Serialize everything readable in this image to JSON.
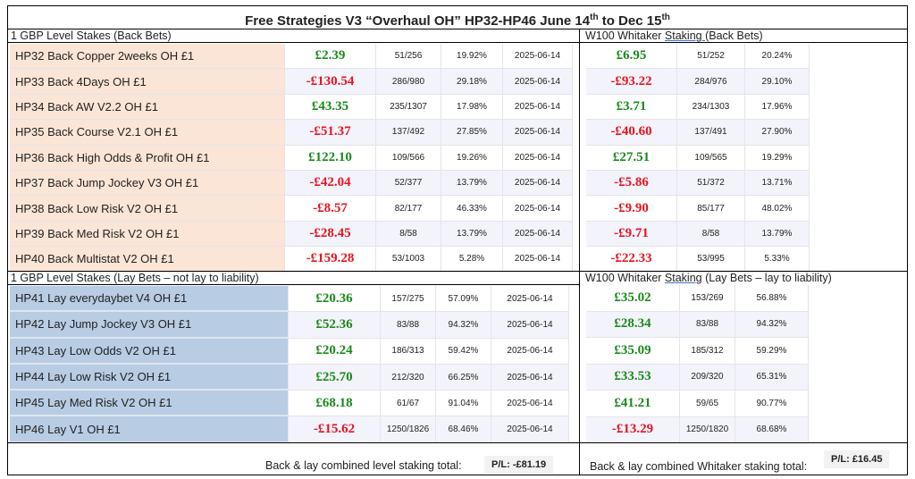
{
  "title": {
    "main": "Free Strategies V3 “Overhaul OH” HP32-HP46 June 14",
    "sup1": "th",
    "mid": " to Dec 15",
    "sup2": "th"
  },
  "back_left_header": "1 GBP Level Stakes (Back Bets)",
  "back_right_header": {
    "pre": "W100 Whitaker ",
    "under": "Staking ",
    "post": " (Back Bets)"
  },
  "lay_left_header": "1 GBP Level Stakes (Lay Bets – not lay to liability)",
  "lay_right_header": {
    "pre": "W100 Whitaker ",
    "under": "Staking",
    "post": " (Lay Bets – lay to liability)"
  },
  "back_rows": [
    {
      "name": "HP32 Back Copper 2weeks OH £1",
      "pl": "£2.39",
      "ratio": "51/256",
      "pct": "19.92%",
      "date": "2025-06-14",
      "w_pl": "£6.95",
      "w_ratio": "51/252",
      "w_pct": "20.24%",
      "pos": true,
      "wpos": true
    },
    {
      "name": "HP33 Back 4Days OH £1",
      "pl": "-£130.54",
      "ratio": "286/980",
      "pct": "29.18%",
      "date": "2025-06-14",
      "w_pl": "-£93.22",
      "w_ratio": "284/976",
      "w_pct": "29.10%",
      "pos": false,
      "wpos": false
    },
    {
      "name": "HP34 Back AW V2.2 OH £1",
      "pl": "£43.35",
      "ratio": "235/1307",
      "pct": "17.98%",
      "date": "2025-06-14",
      "w_pl": "£3.71",
      "w_ratio": "234/1303",
      "w_pct": "17.96%",
      "pos": true,
      "wpos": true
    },
    {
      "name": "HP35 Back Course V2.1 OH £1",
      "pl": "-£51.37",
      "ratio": "137/492",
      "pct": "27.85%",
      "date": "2025-06-14",
      "w_pl": "-£40.60",
      "w_ratio": "137/491",
      "w_pct": "27.90%",
      "pos": false,
      "wpos": false
    },
    {
      "name": "HP36 Back High Odds & Profit OH £1",
      "pl": "£122.10",
      "ratio": "109/566",
      "pct": "19.26%",
      "date": "2025-06-14",
      "w_pl": "£27.51",
      "w_ratio": "109/565",
      "w_pct": "19.29%",
      "pos": true,
      "wpos": true
    },
    {
      "name": "HP37 Back Jump Jockey V3 OH £1",
      "pl": "-£42.04",
      "ratio": "52/377",
      "pct": "13.79%",
      "date": "2025-06-14",
      "w_pl": "-£5.86",
      "w_ratio": "51/372",
      "w_pct": "13.71%",
      "pos": false,
      "wpos": false
    },
    {
      "name": "HP38 Back Low Risk V2 OH £1",
      "pl": "-£8.57",
      "ratio": "82/177",
      "pct": "46.33%",
      "date": "2025-06-14",
      "w_pl": "-£9.90",
      "w_ratio": "85/177",
      "w_pct": "48.02%",
      "pos": false,
      "wpos": false
    },
    {
      "name": "HP39 Back Med Risk V2 OH £1",
      "pl": "-£28.45",
      "ratio": "8/58",
      "pct": "13.79%",
      "date": "2025-06-14",
      "w_pl": "-£9.71",
      "w_ratio": "8/58",
      "w_pct": "13.79%",
      "pos": false,
      "wpos": false
    },
    {
      "name": "HP40 Back Multistat V2 OH £1",
      "pl": "-£159.28",
      "ratio": "53/1003",
      "pct": "5.28%",
      "date": "2025-06-14",
      "w_pl": "-£22.33",
      "w_ratio": "53/995",
      "w_pct": "5.33%",
      "pos": false,
      "wpos": false
    }
  ],
  "lay_rows": [
    {
      "name": "HP41 Lay everydaybet V4 OH £1",
      "pl": "£20.36",
      "ratio": "157/275",
      "pct": "57.09%",
      "date": "2025-06-14",
      "w_pl": "£35.02",
      "w_ratio": "153/269",
      "w_pct": "56.88%",
      "pos": true,
      "wpos": true
    },
    {
      "name": "HP42 Lay Jump Jockey V3 OH £1",
      "pl": "£52.36",
      "ratio": "83/88",
      "pct": "94.32%",
      "date": "2025-06-14",
      "w_pl": "£28.34",
      "w_ratio": "83/88",
      "w_pct": "94.32%",
      "pos": true,
      "wpos": true
    },
    {
      "name": "HP43 Lay Low Odds V2 OH £1",
      "pl": "£20.24",
      "ratio": "186/313",
      "pct": "59.42%",
      "date": "2025-06-14",
      "w_pl": "£35.09",
      "w_ratio": "185/312",
      "w_pct": "59.29%",
      "pos": true,
      "wpos": true
    },
    {
      "name": "HP44 Lay Low Risk V2 OH £1",
      "pl": "£25.70",
      "ratio": "212/320",
      "pct": "66.25%",
      "date": "2025-06-14",
      "w_pl": "£33.53",
      "w_ratio": "209/320",
      "w_pct": "65.31%",
      "pos": true,
      "wpos": true
    },
    {
      "name": "HP45 Lay Med Risk V2 OH £1",
      "pl": "£68.18",
      "ratio": "61/67",
      "pct": "91.04%",
      "date": "2025-06-14",
      "w_pl": "£41.21",
      "w_ratio": "59/65",
      "w_pct": "90.77%",
      "pos": true,
      "wpos": true
    },
    {
      "name": "HP46 Lay V1 OH £1",
      "pl": "-£15.62",
      "ratio": "1250/1826",
      "pct": "68.46%",
      "date": "2025-06-14",
      "w_pl": "-£13.29",
      "w_ratio": "1250/1820",
      "w_pct": "68.68%",
      "pos": false,
      "wpos": false
    }
  ],
  "footer": {
    "level_label": "Back & lay combined level staking total:",
    "level_pl": "P/L: -£81.19",
    "whitaker_label": "Back & lay combined Whitaker staking total:",
    "whitaker_pl": "P/L: £16.45"
  },
  "colors": {
    "positive": "#1a8a1a",
    "negative": "#e8141e",
    "back_name_bg": "#fbe5d6",
    "lay_name_bg": "#b8cce4"
  }
}
